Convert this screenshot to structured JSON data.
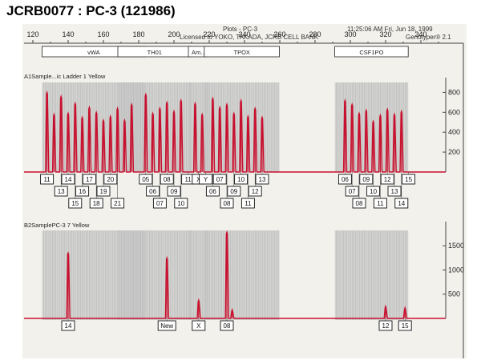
{
  "title": "JCRB0077 : PC-3 (121986)",
  "header": {
    "plots": "Plots - PC-3",
    "license": "Licensed to YOKO, TAKADA, JCRB CELL BANK",
    "datetime": "11:25:06 AM Fri, Jun 18, 1999",
    "software": "Genotyper® 2.1"
  },
  "colors": {
    "peak": "#c8102e",
    "grid": "#c9c9c9",
    "axis": "#444444"
  },
  "chart_data": [
    {
      "type": "line",
      "title": "A1Sample...ic Ladder  1 Yellow",
      "x_axis": {
        "range": [
          115,
          355
        ],
        "ticks": [
          120,
          140,
          160,
          180,
          200,
          220,
          240,
          260,
          280,
          300,
          320,
          340
        ]
      },
      "y_axis": {
        "range": [
          0,
          900
        ],
        "ticks": [
          200,
          400,
          600,
          800
        ]
      },
      "loci": [
        {
          "name": "vWA",
          "range": [
            127,
            182
          ]
        },
        {
          "name": "TH01",
          "range": [
            170,
            208
          ]
        },
        {
          "name": "Am...",
          "range": [
            210,
            218
          ]
        },
        {
          "name": "TPOX",
          "range": [
            219,
            258
          ]
        },
        {
          "name": "CSF1PO",
          "range": [
            293,
            331
          ]
        }
      ],
      "series": [
        {
          "color": "#c8102e",
          "peaks": [
            {
              "x": 128,
              "y": 800
            },
            {
              "x": 132,
              "y": 580
            },
            {
              "x": 136,
              "y": 760
            },
            {
              "x": 140,
              "y": 590
            },
            {
              "x": 144,
              "y": 690
            },
            {
              "x": 148,
              "y": 550
            },
            {
              "x": 152,
              "y": 650
            },
            {
              "x": 156,
              "y": 600
            },
            {
              "x": 160,
              "y": 520
            },
            {
              "x": 164,
              "y": 560
            },
            {
              "x": 168,
              "y": 640
            },
            {
              "x": 172,
              "y": 520
            },
            {
              "x": 176,
              "y": 680
            },
            {
              "x": 184,
              "y": 780
            },
            {
              "x": 188,
              "y": 590
            },
            {
              "x": 192,
              "y": 640
            },
            {
              "x": 196,
              "y": 700
            },
            {
              "x": 200,
              "y": 610
            },
            {
              "x": 204,
              "y": 720
            },
            {
              "x": 212,
              "y": 690
            },
            {
              "x": 216,
              "y": 580
            },
            {
              "x": 222,
              "y": 740
            },
            {
              "x": 226,
              "y": 650
            },
            {
              "x": 230,
              "y": 680
            },
            {
              "x": 234,
              "y": 590
            },
            {
              "x": 238,
              "y": 720
            },
            {
              "x": 242,
              "y": 560
            },
            {
              "x": 246,
              "y": 640
            },
            {
              "x": 250,
              "y": 550
            },
            {
              "x": 297,
              "y": 720
            },
            {
              "x": 301,
              "y": 680
            },
            {
              "x": 305,
              "y": 590
            },
            {
              "x": 309,
              "y": 620
            },
            {
              "x": 313,
              "y": 510
            },
            {
              "x": 317,
              "y": 570
            },
            {
              "x": 321,
              "y": 630
            },
            {
              "x": 325,
              "y": 580
            },
            {
              "x": 329,
              "y": 610
            }
          ]
        }
      ],
      "allele_labels": [
        {
          "x": 128,
          "label": "11",
          "row": 0
        },
        {
          "x": 140,
          "label": "14",
          "row": 0
        },
        {
          "x": 152,
          "label": "17",
          "row": 0
        },
        {
          "x": 164,
          "label": "20",
          "row": 0
        },
        {
          "x": 136,
          "label": "13",
          "row": 1
        },
        {
          "x": 148,
          "label": "16",
          "row": 1
        },
        {
          "x": 160,
          "label": "19",
          "row": 1
        },
        {
          "x": 144,
          "label": "15",
          "row": 2
        },
        {
          "x": 156,
          "label": "18",
          "row": 2
        },
        {
          "x": 168,
          "label": "21",
          "row": 2
        },
        {
          "x": 184,
          "label": "05",
          "row": 0
        },
        {
          "x": 196,
          "label": "08",
          "row": 0
        },
        {
          "x": 208,
          "label": "11",
          "row": 0
        },
        {
          "x": 188,
          "label": "06",
          "row": 1
        },
        {
          "x": 200,
          "label": "09",
          "row": 1
        },
        {
          "x": 192,
          "label": "07",
          "row": 2
        },
        {
          "x": 204,
          "label": "10",
          "row": 2
        },
        {
          "x": 214,
          "label": "X",
          "row": 0
        },
        {
          "x": 218,
          "label": "Y",
          "row": 0
        },
        {
          "x": 226,
          "label": "07",
          "row": 0
        },
        {
          "x": 238,
          "label": "10",
          "row": 0
        },
        {
          "x": 250,
          "label": "13",
          "row": 0
        },
        {
          "x": 222,
          "label": "06",
          "row": 1
        },
        {
          "x": 234,
          "label": "09",
          "row": 1
        },
        {
          "x": 246,
          "label": "12",
          "row": 1
        },
        {
          "x": 230,
          "label": "08",
          "row": 2
        },
        {
          "x": 242,
          "label": "11",
          "row": 2
        },
        {
          "x": 297,
          "label": "06",
          "row": 0
        },
        {
          "x": 309,
          "label": "09",
          "row": 0
        },
        {
          "x": 321,
          "label": "12",
          "row": 0
        },
        {
          "x": 333,
          "label": "15",
          "row": 0
        },
        {
          "x": 301,
          "label": "07",
          "row": 1
        },
        {
          "x": 313,
          "label": "10",
          "row": 1
        },
        {
          "x": 325,
          "label": "13",
          "row": 1
        },
        {
          "x": 305,
          "label": "08",
          "row": 2
        },
        {
          "x": 317,
          "label": "11",
          "row": 2
        },
        {
          "x": 329,
          "label": "14",
          "row": 2
        }
      ]
    },
    {
      "type": "line",
      "title": "B2SamplePC-3        7 Yellow",
      "x_axis": {
        "range": [
          115,
          355
        ]
      },
      "y_axis": {
        "range": [
          0,
          1900
        ],
        "ticks": [
          500,
          1000,
          1500
        ]
      },
      "series": [
        {
          "color": "#c8102e",
          "peaks": [
            {
              "x": 140,
              "y": 1350
            },
            {
              "x": 196,
              "y": 1250
            },
            {
              "x": 214,
              "y": 380
            },
            {
              "x": 230,
              "y": 1780
            },
            {
              "x": 233,
              "y": 180
            },
            {
              "x": 320,
              "y": 250
            },
            {
              "x": 331,
              "y": 220
            }
          ]
        }
      ],
      "allele_labels": [
        {
          "x": 140,
          "label": "14",
          "row": 0
        },
        {
          "x": 196,
          "label": "New",
          "row": 0
        },
        {
          "x": 214,
          "label": "X",
          "row": 0
        },
        {
          "x": 230,
          "label": "08",
          "row": 0
        },
        {
          "x": 320,
          "label": "12",
          "row": 0
        },
        {
          "x": 331,
          "label": "15",
          "row": 0
        }
      ]
    }
  ]
}
